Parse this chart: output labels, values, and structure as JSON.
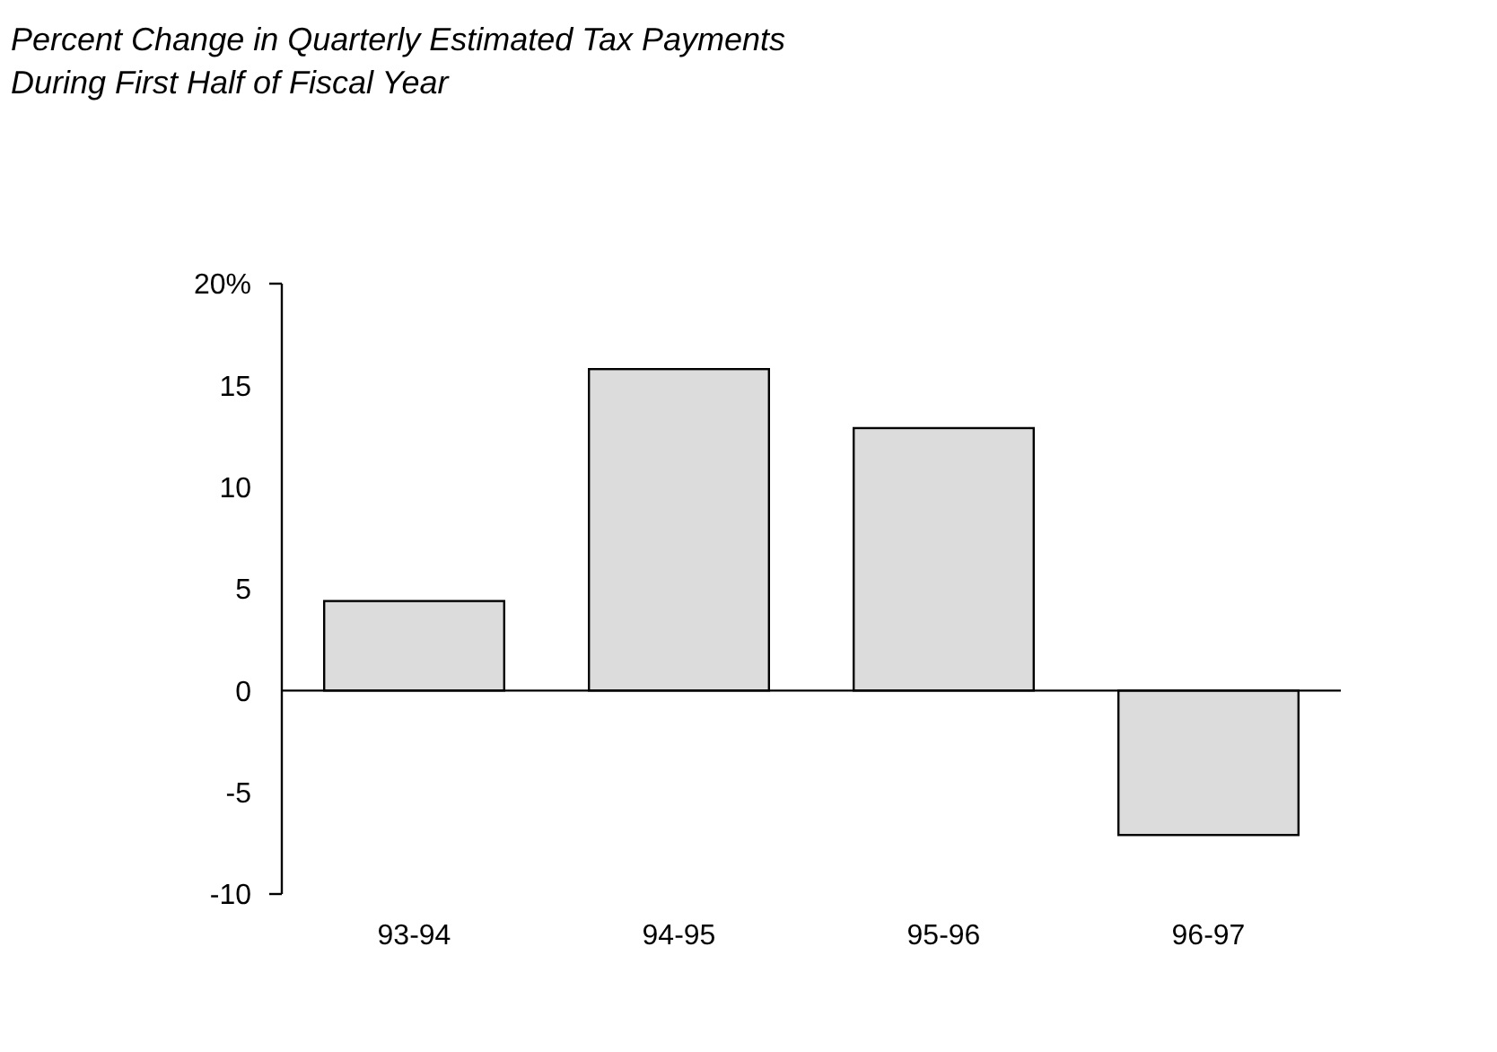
{
  "chart_data": {
    "type": "bar",
    "title": "Percent Change in Quarterly Estimated Tax Payments\nDuring First Half of Fiscal Year",
    "categories": [
      "93-94",
      "94-95",
      "95-96",
      "96-97"
    ],
    "values": [
      4.4,
      15.8,
      12.9,
      -7.1
    ],
    "color": "#dcdcdc",
    "ylim": [
      -10,
      20
    ],
    "yticks": [
      -10,
      -5,
      0,
      5,
      10,
      15,
      {
        "value": 20,
        "label": "20%"
      }
    ]
  }
}
